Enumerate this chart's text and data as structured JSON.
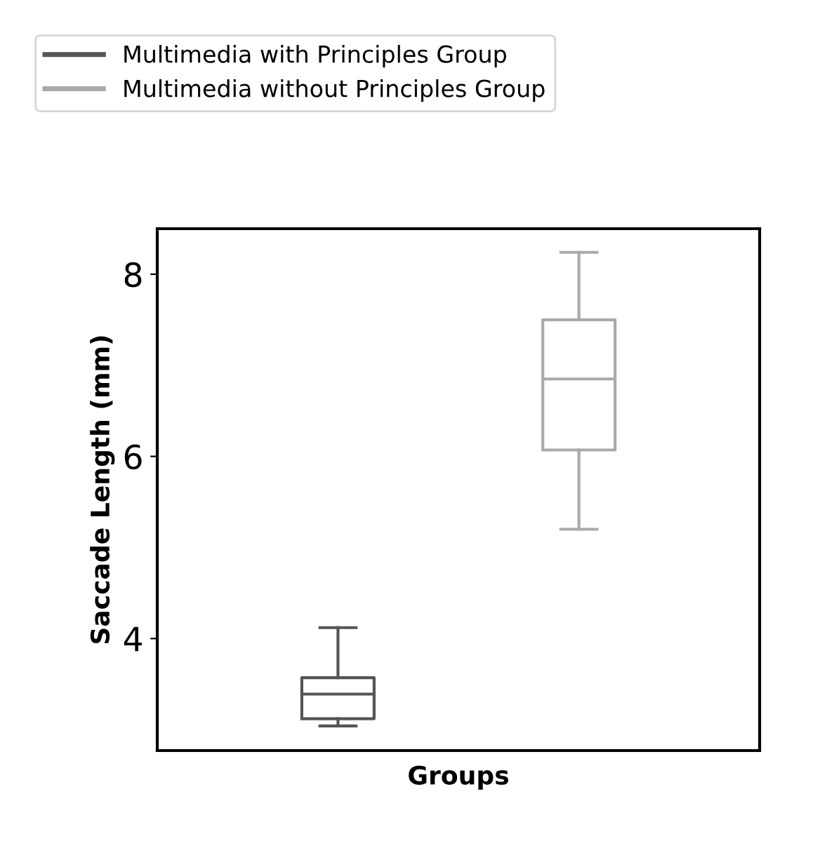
{
  "chart_data": {
    "type": "box",
    "xlabel": "Groups",
    "ylabel": "Saccade Length (mm)",
    "categories": [
      null,
      null
    ],
    "series": [
      {
        "name": "Multimedia with Principles Group",
        "color": "#555555",
        "boxes": [
          {
            "low": 3.04,
            "q1": 3.12,
            "median": 3.39,
            "q3": 3.57,
            "high": 4.12
          },
          null
        ]
      },
      {
        "name": "Multimedia without Principles Group",
        "color": "#aaaaaa",
        "boxes": [
          null,
          {
            "low": 5.2,
            "q1": 6.07,
            "median": 6.85,
            "q3": 7.5,
            "high": 8.24
          }
        ]
      }
    ],
    "ylim": [
      2.77,
      8.5
    ],
    "yticks": [
      4,
      6,
      8
    ],
    "grid": false,
    "legend": "top left"
  }
}
